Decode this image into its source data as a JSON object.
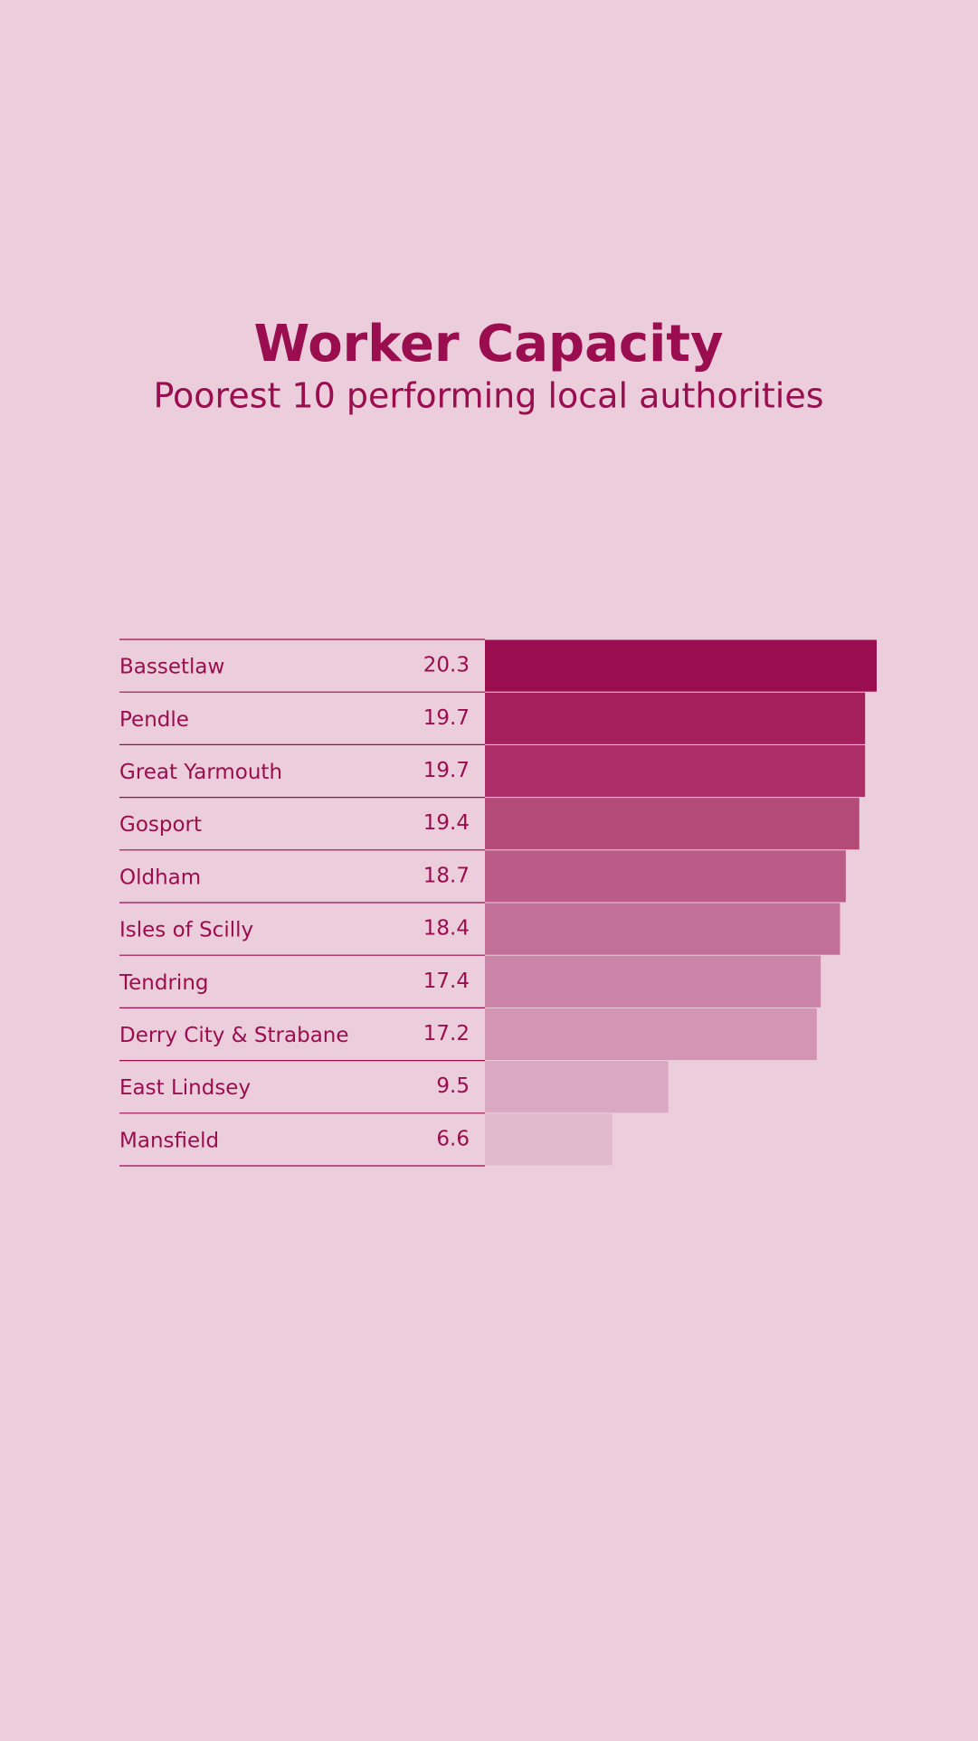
{
  "chart_data": {
    "type": "bar",
    "orientation": "horizontal",
    "title": "Worker Capacity",
    "subtitle": "Poorest 10 performing local authorities",
    "categories": [
      "Bassetlaw",
      "Pendle",
      "Great Yarmouth",
      "Gosport",
      "Oldham",
      "Isles of Scilly",
      "Tendring",
      "Derry City & Strabane",
      "East Lindsey",
      "Mansfield"
    ],
    "values": [
      20.3,
      19.7,
      19.7,
      19.4,
      18.7,
      18.4,
      17.4,
      17.2,
      9.5,
      6.6
    ],
    "colors": [
      "#9a0e50",
      "#a61f5d",
      "#ac2e68",
      "#b44a78",
      "#bb5b87",
      "#c27098",
      "#cb85a8",
      "#d494b4",
      "#dba8c4",
      "#e2bad0"
    ]
  }
}
